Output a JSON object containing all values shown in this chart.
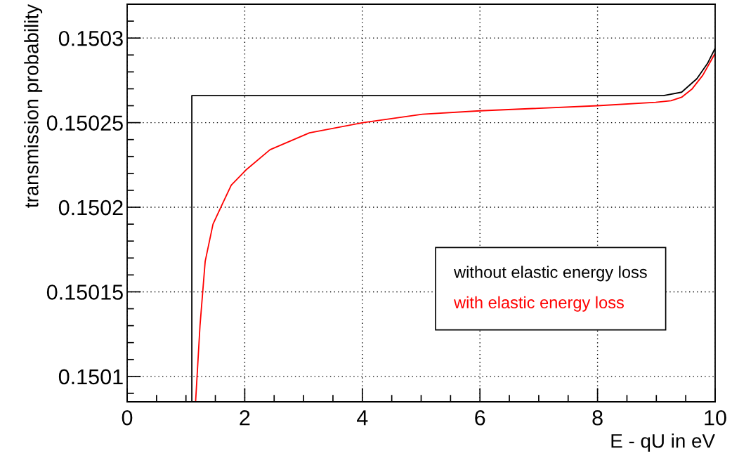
{
  "chart_data": {
    "type": "line",
    "xlabel": "E - qU in eV",
    "ylabel": "transmission probability",
    "xlim": [
      0,
      10
    ],
    "xticks": [
      0,
      2,
      4,
      6,
      8,
      10
    ],
    "ylim": [
      0.150085,
      0.15032
    ],
    "yticks": [
      0.1501,
      0.15015,
      0.1502,
      0.15025,
      0.1503
    ],
    "grid": true,
    "legend": "bottom right",
    "marker": "none",
    "line_style": "solid",
    "series": [
      {
        "name": "without elastic energy loss",
        "color": "#000000",
        "x": [
          1.1,
          1.1,
          2,
          4,
          6,
          8,
          9.12,
          9.43,
          9.69,
          9.87,
          10
        ],
        "values": [
          0.150085,
          0.150266,
          0.150266,
          0.150266,
          0.150266,
          0.150266,
          0.150266,
          0.150268,
          0.150276,
          0.150285,
          0.150294
        ]
      },
      {
        "name": "with elastic energy loss",
        "color": "#ff0000",
        "x": [
          1.164,
          1.239,
          1.327,
          1.46,
          1.593,
          1.77,
          2.02,
          2.43,
          3.1,
          4.01,
          5.02,
          6.0,
          8.0,
          8.99,
          9.25,
          9.43,
          9.61,
          9.79,
          10
        ],
        "values": [
          0.150085,
          0.15013,
          0.150168,
          0.15019,
          0.1502,
          0.150213,
          0.150222,
          0.150234,
          0.150244,
          0.15025,
          0.150255,
          0.150257,
          0.15026,
          0.150262,
          0.150263,
          0.150265,
          0.15027,
          0.150278,
          0.150291
        ]
      }
    ]
  }
}
